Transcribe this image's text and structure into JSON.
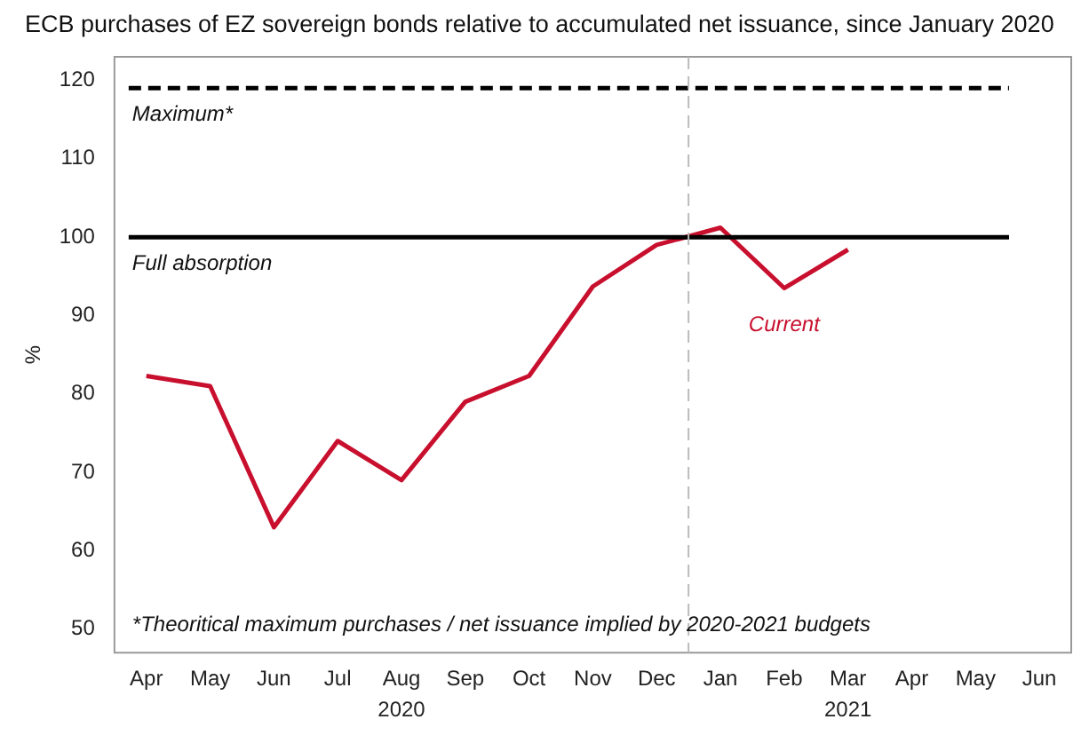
{
  "chart_data": {
    "type": "line",
    "title": "ECB purchases of EZ sovereign bonds relative to accumulated net issuance, since January 2020",
    "ylabel": "%",
    "categories": [
      "Apr",
      "May",
      "Jun",
      "Jul",
      "Aug",
      "Sep",
      "Oct",
      "Nov",
      "Dec",
      "Jan",
      "Feb",
      "Mar",
      "Apr",
      "May",
      "Jun"
    ],
    "series": [
      {
        "color": "#c8102e",
        "values": [
          82.3,
          81,
          63,
          74,
          69,
          79,
          82.3,
          93.7,
          99,
          101.2,
          93.5,
          98.4,
          null,
          null,
          null
        ]
      }
    ],
    "ylim": [
      47,
      123
    ],
    "yticks": [
      50,
      60,
      70,
      80,
      90,
      100,
      110,
      120
    ],
    "grid": false,
    "legend": false,
    "marker": "none",
    "line_style": "solid",
    "ref_lines": [
      {
        "axis": "y",
        "value": 119,
        "label": "Maximum*",
        "line_style": "dashed",
        "color": "#000000"
      },
      {
        "axis": "y",
        "value": 100,
        "label": "Full absorption",
        "line_style": "solid",
        "color": "#000000"
      },
      {
        "axis": "x",
        "value": "Jan",
        "line_style": "dashed",
        "color": "#bbbbbb"
      }
    ],
    "annotations": [
      "Current",
      "2020",
      "2021",
      "*Theoritical maximum purchases / net issuance implied by 2020-2021 budgets"
    ]
  }
}
